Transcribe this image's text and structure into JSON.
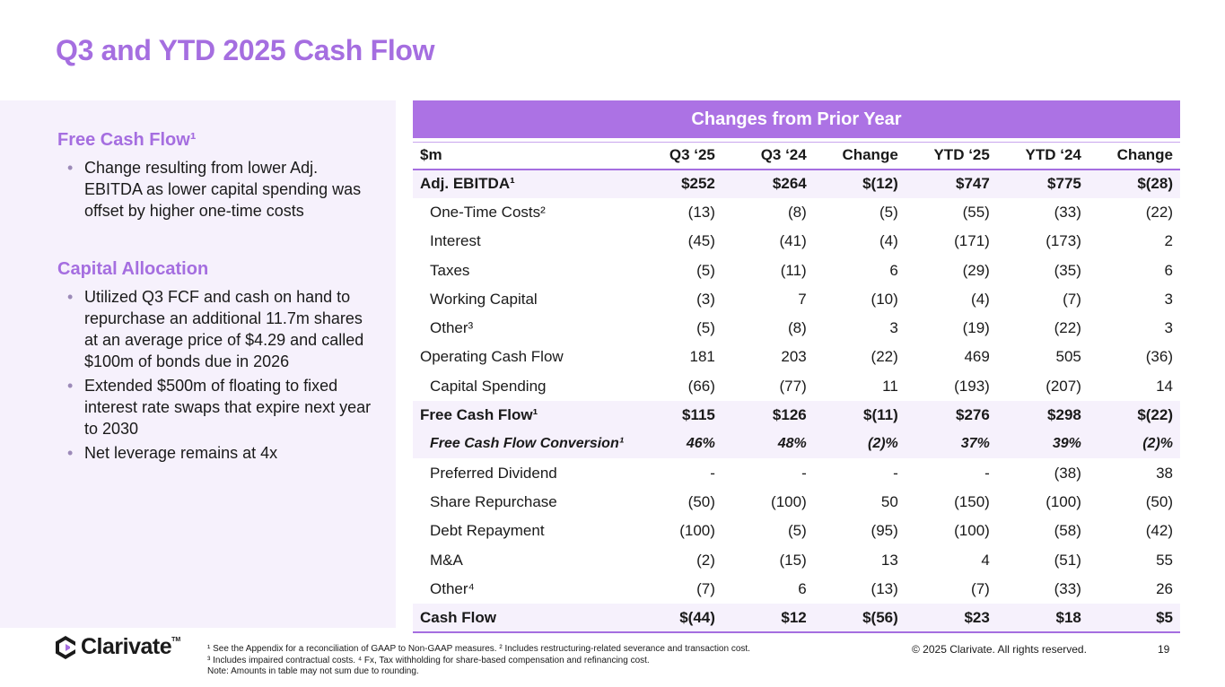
{
  "title": "Q3 and YTD 2025 Cash Flow",
  "left": {
    "fcf_heading": "Free Cash Flow¹",
    "fcf_bullets": [
      "Change resulting from lower Adj. EBITDA as lower capital spending was offset by higher one-time costs"
    ],
    "cap_heading": "Capital Allocation",
    "cap_bullets": [
      "Utilized Q3 FCF and cash on hand to repurchase an additional 11.7m shares at an average price of $4.29 and called $100m of bonds due in 2026",
      "Extended $500m of floating to fixed interest rate swaps that expire next year to 2030",
      "Net leverage remains at 4x"
    ]
  },
  "table": {
    "band": "Changes from Prior Year",
    "headers": [
      "$m",
      "Q3 ‘25",
      "Q3 ‘24",
      "Change",
      "YTD ‘25",
      "YTD ‘24",
      "Change"
    ],
    "rows": [
      [
        "Adj. EBITDA¹",
        "$252",
        "$264",
        "$(12)",
        "$747",
        "$775",
        "$(28)"
      ],
      [
        "One-Time Costs²",
        "(13)",
        "(8)",
        "(5)",
        "(55)",
        "(33)",
        "(22)"
      ],
      [
        "Interest",
        "(45)",
        "(41)",
        "(4)",
        "(171)",
        "(173)",
        "2"
      ],
      [
        "Taxes",
        "(5)",
        "(11)",
        "6",
        "(29)",
        "(35)",
        "6"
      ],
      [
        "Working Capital",
        "(3)",
        "7",
        "(10)",
        "(4)",
        "(7)",
        "3"
      ],
      [
        "Other³",
        "(5)",
        "(8)",
        "3",
        "(19)",
        "(22)",
        "3"
      ],
      [
        "Operating Cash Flow",
        "181",
        "203",
        "(22)",
        "469",
        "505",
        "(36)"
      ],
      [
        "Capital Spending",
        "(66)",
        "(77)",
        "11",
        "(193)",
        "(207)",
        "14"
      ],
      [
        "Free Cash Flow¹",
        "$115",
        "$126",
        "$(11)",
        "$276",
        "$298",
        "$(22)"
      ],
      [
        "Free Cash Flow Conversion¹",
        "46%",
        "48%",
        "(2)%",
        "37%",
        "39%",
        "(2)%"
      ],
      [
        "Preferred Dividend",
        "-",
        "-",
        "-",
        "-",
        "(38)",
        "38"
      ],
      [
        "Share Repurchase",
        "(50)",
        "(100)",
        "50",
        "(150)",
        "(100)",
        "(50)"
      ],
      [
        "Debt Repayment",
        "(100)",
        "(5)",
        "(95)",
        "(100)",
        "(58)",
        "(42)"
      ],
      [
        "M&A",
        "(2)",
        "(15)",
        "13",
        "4",
        "(51)",
        "55"
      ],
      [
        "Other⁴",
        "(7)",
        "6",
        "(13)",
        "(7)",
        "(33)",
        "26"
      ],
      [
        "Cash Flow",
        "$(44)",
        "$12",
        "$(56)",
        "$23",
        "$18",
        "$5"
      ]
    ]
  },
  "logo": {
    "name": "Clarivate",
    "tm": "TM"
  },
  "footnotes": [
    "¹ See the Appendix for a reconciliation of GAAP to Non-GAAP measures.  ² Includes restructuring-related severance and transaction cost.",
    "³ Includes impaired contractual costs.  ⁴ Fx, Tax withholding for share-based compensation and refinancing cost.",
    "Note: Amounts in table may not sum due to rounding."
  ],
  "copyright": "© 2025 Clarivate. All rights reserved.",
  "page_number": "19",
  "colors": {
    "accent": "#a56ee0",
    "band": "#ac72e4",
    "shade": "#f6f1fc"
  }
}
